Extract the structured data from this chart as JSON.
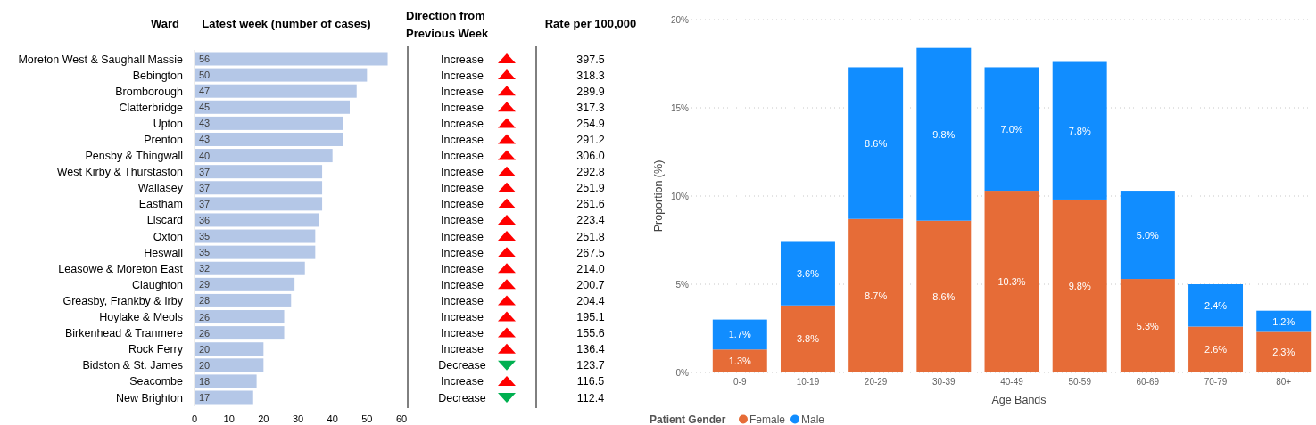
{
  "chart_data": [
    {
      "type": "bar",
      "orientation": "horizontal",
      "title": "Latest week (number of cases)",
      "ylabel": "Ward",
      "categories": [
        "Moreton West & Saughall Massie",
        "Bebington",
        "Bromborough",
        "Clatterbridge",
        "Upton",
        "Prenton",
        "Pensby & Thingwall",
        "West Kirby & Thurstaston",
        "Wallasey",
        "Eastham",
        "Liscard",
        "Oxton",
        "Heswall",
        "Leasowe & Moreton East",
        "Claughton",
        "Greasby, Frankby & Irby",
        "Hoylake & Meols",
        "Birkenhead & Tranmere",
        "Rock Ferry",
        "Bidston & St. James",
        "Seacombe",
        "New Brighton"
      ],
      "values": [
        56,
        50,
        47,
        45,
        43,
        43,
        40,
        37,
        37,
        37,
        36,
        35,
        35,
        32,
        29,
        28,
        26,
        26,
        20,
        20,
        18,
        17
      ],
      "color": "#b4c7e7",
      "xlim": [
        0,
        60
      ],
      "xticks": [
        0,
        10,
        20,
        30,
        40,
        50,
        60
      ],
      "data_labels": true,
      "grid": false
    },
    {
      "type": "other",
      "title": "Direction from Previous Week",
      "categories": [
        "Increase",
        "Increase",
        "Increase",
        "Increase",
        "Increase",
        "Increase",
        "Increase",
        "Increase",
        "Increase",
        "Increase",
        "Increase",
        "Increase",
        "Increase",
        "Increase",
        "Increase",
        "Increase",
        "Increase",
        "Increase",
        "Increase",
        "Decrease",
        "Increase",
        "Decrease"
      ],
      "colors": [
        "#ff0000",
        "#ff0000",
        "#ff0000",
        "#ff0000",
        "#ff0000",
        "#ff0000",
        "#ff0000",
        "#ff0000",
        "#ff0000",
        "#ff0000",
        "#ff0000",
        "#ff0000",
        "#ff0000",
        "#ff0000",
        "#ff0000",
        "#ff0000",
        "#ff0000",
        "#ff0000",
        "#ff0000",
        "#00b050",
        "#ff0000",
        "#00b050"
      ]
    },
    {
      "type": "other",
      "title": "Rate per 100,000",
      "values": [
        397.5,
        318.3,
        289.9,
        317.3,
        254.9,
        291.2,
        306.0,
        292.8,
        251.9,
        261.6,
        223.4,
        251.8,
        267.5,
        214.0,
        200.7,
        204.4,
        195.1,
        155.6,
        136.4,
        123.7,
        116.5,
        112.4
      ],
      "value_labels": [
        "397.5",
        "318.3",
        "289.9",
        "317.3",
        "254.9",
        "291.2",
        "306.0",
        "292.8",
        "251.9",
        "261.6",
        "223.4",
        "251.8",
        "267.5",
        "214.0",
        "200.7",
        "204.4",
        "195.1",
        "155.6",
        "136.4",
        "123.7",
        "116.5",
        "112.4"
      ]
    },
    {
      "type": "bar",
      "stacked": true,
      "xlabel": "Age Bands",
      "ylabel": "Proportion (%)",
      "legend_title": "Patient Gender",
      "legend": "bottom left",
      "grid": "y",
      "categories": [
        "0-9",
        "10-19",
        "20-29",
        "30-39",
        "40-49",
        "50-59",
        "60-69",
        "70-79",
        "80+"
      ],
      "ylim": [
        0,
        20
      ],
      "yticks": [
        {
          "value": 0,
          "label": "0%"
        },
        {
          "value": 5,
          "label": "5%"
        },
        {
          "value": 10,
          "label": "10%"
        },
        {
          "value": 15,
          "label": "15%"
        },
        {
          "value": 20,
          "label": "20%"
        }
      ],
      "series": [
        {
          "name": "Female",
          "color": "#e66c37",
          "values": [
            1.3,
            3.8,
            8.7,
            8.6,
            10.3,
            9.8,
            5.3,
            2.6,
            2.3
          ],
          "value_labels": [
            "1.3%",
            "3.8%",
            "8.7%",
            "8.6%",
            "10.3%",
            "9.8%",
            "5.3%",
            "2.6%",
            "2.3%"
          ]
        },
        {
          "name": "Male",
          "color": "#118dff",
          "values": [
            1.7,
            3.6,
            8.6,
            9.8,
            7.0,
            7.8,
            5.0,
            2.4,
            1.2
          ],
          "value_labels": [
            "1.7%",
            "3.6%",
            "8.6%",
            "9.8%",
            "7.0%",
            "7.8%",
            "5.0%",
            "2.4%",
            "1.2%"
          ]
        }
      ]
    }
  ]
}
